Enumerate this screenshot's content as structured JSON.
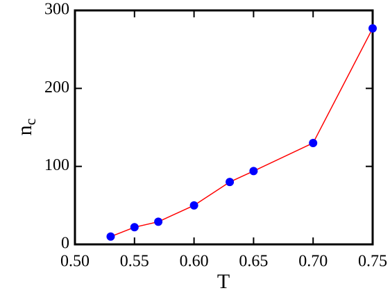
{
  "chart_data": {
    "type": "line",
    "x_label": "T",
    "y_label": [
      "n",
      "c"
    ],
    "x": [
      0.53,
      0.55,
      0.57,
      0.6,
      0.63,
      0.65,
      0.7,
      0.75
    ],
    "series": [
      {
        "values": [
          10,
          22,
          29,
          50,
          80,
          94,
          130,
          277
        ],
        "color": "#ff0000",
        "marker_color": "#0000ff"
      }
    ],
    "xlim": [
      0.5,
      0.75
    ],
    "xticks": [
      {
        "value": 0.5,
        "label": "0.50"
      },
      {
        "value": 0.55,
        "label": "0.55"
      },
      {
        "value": 0.6,
        "label": "0.60"
      },
      {
        "value": 0.65,
        "label": "0.65"
      },
      {
        "value": 0.7,
        "label": "0.70"
      },
      {
        "value": 0.75,
        "label": "0.75"
      }
    ],
    "ylim": [
      0,
      300
    ],
    "yticks": [
      0,
      100,
      200,
      300
    ]
  }
}
